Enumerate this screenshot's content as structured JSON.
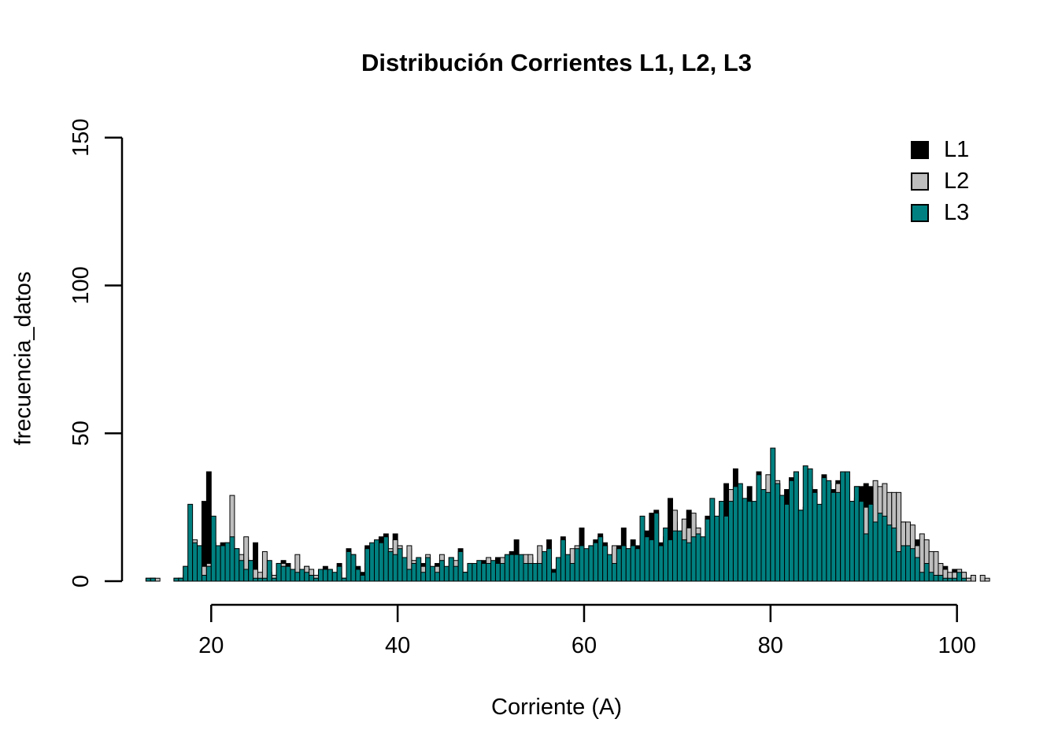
{
  "chart_data": {
    "type": "bar",
    "subtype": "overlaid-histogram",
    "title": "Distribución Corrientes L1, L2, L3",
    "xlabel": "Corriente (A)",
    "ylabel": "frecuencia_datos",
    "xlim": [
      13,
      103.5
    ],
    "ylim": [
      0,
      150
    ],
    "x_ticks": [
      20,
      40,
      60,
      80,
      100
    ],
    "y_ticks": [
      0,
      50,
      100,
      150
    ],
    "grid": "off",
    "legend_position": "top-right",
    "bin_start": 13.0,
    "bin_width": 0.5,
    "background_color": "#ffffff",
    "axis_color": "#000000",
    "series": [
      {
        "name": "L1",
        "color": "#000000",
        "values": [
          1,
          1,
          0,
          0,
          0,
          0,
          1,
          1,
          5,
          4,
          5,
          12,
          27,
          37,
          13,
          9,
          13,
          10,
          12,
          11,
          7,
          8,
          7,
          13,
          2,
          4,
          3,
          1,
          6,
          7,
          6,
          4,
          3,
          2,
          5,
          4,
          1,
          2,
          5,
          4,
          2,
          6,
          1,
          11,
          9,
          5,
          3,
          12,
          9,
          10,
          15,
          16,
          9,
          16,
          8,
          5,
          11,
          5,
          4,
          6,
          5,
          3,
          6,
          4,
          3,
          8,
          5,
          11,
          3,
          4,
          5,
          6,
          7,
          5,
          6,
          8,
          6,
          7,
          10,
          14,
          7,
          6,
          8,
          5,
          7,
          6,
          14,
          4,
          5,
          15,
          6,
          7,
          9,
          18,
          8,
          10,
          14,
          16,
          13,
          8,
          6,
          12,
          18,
          11,
          14,
          12,
          15,
          17,
          23,
          24,
          13,
          15,
          28,
          20,
          16,
          14,
          24,
          19,
          17,
          14,
          22,
          20,
          21,
          27,
          33,
          25,
          38,
          25,
          27,
          32,
          25,
          37,
          30,
          25,
          30,
          33,
          29,
          31,
          35,
          37,
          24,
          25,
          32,
          31,
          22,
          36,
          30,
          31,
          34,
          28,
          30,
          27,
          28,
          32,
          33,
          32,
          25,
          27,
          24,
          29,
          28,
          20,
          20,
          12,
          10,
          14,
          12,
          8,
          6,
          6,
          4,
          5,
          2,
          4,
          4,
          3,
          1,
          1,
          0,
          0,
          0
        ]
      },
      {
        "name": "L2",
        "color": "#BEBEBE",
        "values": [
          0,
          1,
          1,
          0,
          0,
          0,
          0,
          1,
          2,
          4,
          14,
          3,
          5,
          6,
          8,
          10,
          9,
          13,
          29,
          8,
          9,
          15,
          5,
          4,
          3,
          10,
          2,
          2,
          3,
          6,
          3,
          3,
          9,
          3,
          5,
          4,
          2,
          2,
          2,
          2,
          2,
          3,
          1,
          5,
          6,
          3,
          2,
          6,
          5,
          6,
          7,
          8,
          11,
          14,
          12,
          6,
          12,
          7,
          4,
          5,
          9,
          4,
          5,
          9,
          3,
          4,
          7,
          4,
          3,
          6,
          3,
          4,
          5,
          8,
          4,
          5,
          8,
          5,
          6,
          6,
          5,
          9,
          9,
          5,
          12,
          5,
          6,
          3,
          4,
          7,
          5,
          11,
          12,
          8,
          6,
          12,
          8,
          9,
          12,
          7,
          12,
          11,
          8,
          7,
          9,
          8,
          10,
          11,
          12,
          13,
          9,
          10,
          14,
          24,
          12,
          21,
          18,
          23,
          18,
          12,
          13,
          12,
          13,
          15,
          16,
          31,
          20,
          16,
          17,
          18,
          16,
          19,
          18,
          36,
          20,
          34,
          20,
          21,
          22,
          23,
          20,
          21,
          22,
          30,
          19,
          23,
          33,
          24,
          33,
          22,
          24,
          21,
          32,
          24,
          25,
          26,
          34,
          32,
          33,
          30,
          30,
          30,
          20,
          20,
          19,
          12,
          16,
          14,
          10,
          10,
          6,
          4,
          3,
          3,
          4,
          3,
          1,
          2,
          0,
          2,
          1
        ]
      },
      {
        "name": "L3",
        "color": "#008080",
        "values": [
          1,
          1,
          0,
          0,
          0,
          0,
          1,
          1,
          5,
          26,
          13,
          12,
          2,
          5,
          22,
          12,
          12,
          13,
          15,
          11,
          7,
          4,
          7,
          1,
          1,
          1,
          7,
          1,
          6,
          5,
          5,
          4,
          3,
          4,
          3,
          2,
          1,
          4,
          4,
          4,
          3,
          5,
          1,
          10,
          9,
          4,
          2,
          11,
          13,
          14,
          13,
          15,
          10,
          9,
          11,
          8,
          4,
          6,
          8,
          3,
          8,
          5,
          3,
          7,
          5,
          8,
          5,
          10,
          3,
          6,
          6,
          7,
          6,
          6,
          7,
          6,
          6,
          9,
          9,
          9,
          9,
          6,
          6,
          6,
          6,
          10,
          11,
          3,
          8,
          14,
          9,
          6,
          11,
          12,
          11,
          12,
          13,
          15,
          12,
          9,
          6,
          11,
          12,
          11,
          12,
          11,
          22,
          15,
          14,
          23,
          12,
          18,
          14,
          17,
          17,
          14,
          13,
          15,
          16,
          15,
          21,
          28,
          22,
          27,
          22,
          27,
          32,
          33,
          28,
          27,
          27,
          36,
          31,
          30,
          45,
          33,
          29,
          26,
          34,
          37,
          24,
          39,
          38,
          30,
          26,
          35,
          34,
          30,
          30,
          37,
          37,
          27,
          32,
          27,
          16,
          26,
          20,
          23,
          22,
          19,
          18,
          10,
          12,
          12,
          11,
          8,
          3,
          6,
          3,
          2,
          2,
          1,
          1,
          1,
          3,
          1,
          0,
          0,
          0,
          0,
          0
        ]
      }
    ]
  }
}
